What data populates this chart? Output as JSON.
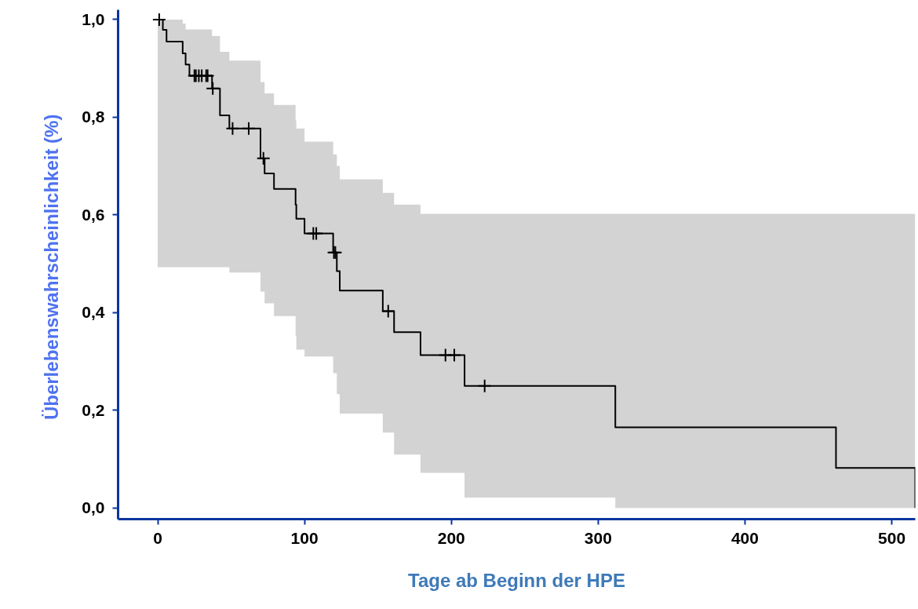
{
  "chart_data": {
    "type": "step",
    "xlabel": "Tage ab Beginn der HPE",
    "ylabel": "Überlebenswahrscheinlichkeit  (%)",
    "xlim": [
      -27,
      516
    ],
    "ylim": [
      -0.023,
      1.02
    ],
    "xticks": [
      0,
      100,
      200,
      300,
      400,
      500
    ],
    "yticks": [
      {
        "value": 0,
        "label": "0,0"
      },
      {
        "value": 0.2,
        "label": "0,2"
      },
      {
        "value": 0.4,
        "label": "0,4"
      },
      {
        "value": 0.6,
        "label": "0,6"
      },
      {
        "value": 0.8,
        "label": "0,8"
      },
      {
        "value": 1,
        "label": "1,0"
      }
    ],
    "grid": false,
    "line_style": "solid",
    "series": [
      {
        "color": "#000000",
        "x": [
          0,
          3.5,
          6,
          17,
          19,
          21.6,
          37,
          42.4,
          48.8,
          70,
          72.8,
          79.2,
          93.9,
          94.4,
          100,
          119.5,
          122,
          124,
          153.3,
          161,
          179,
          209,
          311.7,
          462,
          516
        ],
        "values": [
          1.0,
          0.979,
          0.955,
          0.931,
          0.908,
          0.885,
          0.859,
          0.804,
          0.777,
          0.716,
          0.685,
          0.653,
          0.621,
          0.592,
          0.562,
          0.523,
          0.485,
          0.445,
          0.403,
          0.36,
          0.313,
          0.25,
          0.165,
          0.082,
          0
        ],
        "lower": [
          0.493,
          0.493,
          0.493,
          0.493,
          0.493,
          0.493,
          0.493,
          0.493,
          0.482,
          0.443,
          0.419,
          0.393,
          0.352,
          0.324,
          0.31,
          0.276,
          0.233,
          0.193,
          0.154,
          0.109,
          0.072,
          0.021,
          0.0,
          0.0,
          0.0
        ],
        "upper": [
          1.0,
          1.0,
          1.0,
          0.992,
          0.98,
          0.98,
          0.966,
          0.934,
          0.916,
          0.872,
          0.849,
          0.825,
          0.793,
          0.777,
          0.75,
          0.724,
          0.7,
          0.673,
          0.645,
          0.621,
          0.602,
          0.602,
          0.602,
          0.602,
          0.602
        ]
      },
      {
        "type": "scatter",
        "marker": "cross",
        "color": "#000000",
        "x": [
          1,
          25,
          26,
          28,
          30,
          33,
          34,
          37.5,
          51,
          62,
          72,
          106,
          108,
          120,
          121,
          157,
          196,
          202,
          222.7
        ],
        "values": [
          1.0,
          0.885,
          0.885,
          0.885,
          0.885,
          0.885,
          0.885,
          0.859,
          0.777,
          0.777,
          0.716,
          0.562,
          0.562,
          0.523,
          0.523,
          0.403,
          0.313,
          0.313,
          0.25
        ]
      }
    ]
  }
}
